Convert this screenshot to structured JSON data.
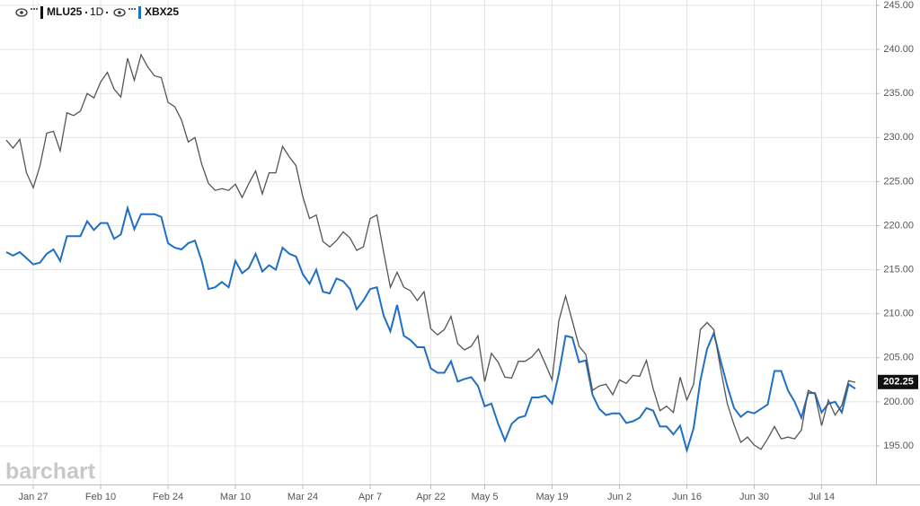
{
  "chart_data": {
    "type": "line",
    "watermark": "barchart",
    "interval": "1D",
    "categories": [
      null,
      null,
      null,
      null,
      "Jan 27",
      null,
      null,
      null,
      null,
      null,
      null,
      null,
      null,
      null,
      "Feb 10",
      null,
      null,
      null,
      null,
      null,
      null,
      null,
      null,
      null,
      "Feb 24",
      null,
      null,
      null,
      null,
      null,
      null,
      null,
      null,
      null,
      "Mar 10",
      null,
      null,
      null,
      null,
      null,
      null,
      null,
      null,
      null,
      "Mar 24",
      null,
      null,
      null,
      null,
      null,
      null,
      null,
      null,
      null,
      "Apr 7",
      null,
      null,
      null,
      null,
      null,
      null,
      null,
      null,
      "Apr 22",
      null,
      null,
      null,
      null,
      null,
      null,
      null,
      "May 5",
      null,
      null,
      null,
      null,
      null,
      null,
      null,
      null,
      null,
      "May 19",
      null,
      null,
      null,
      null,
      null,
      null,
      null,
      null,
      null,
      "Jun 2",
      null,
      null,
      null,
      null,
      null,
      null,
      null,
      null,
      null,
      "Jun 16",
      null,
      null,
      null,
      null,
      null,
      null,
      null,
      null,
      null,
      "Jun 30",
      null,
      null,
      null,
      null,
      null,
      null,
      null,
      null,
      null,
      "Jul 14",
      null,
      null,
      null,
      null,
      null
    ],
    "series": [
      {
        "name": "MLU25",
        "color": "#555555",
        "last_price": 202.25,
        "values": [
          229.7,
          228.8,
          229.8,
          226,
          224.3,
          226.8,
          230.5,
          230.7,
          228.5,
          232.8,
          232.5,
          233,
          235,
          234.5,
          236.3,
          237.4,
          235.5,
          234.6,
          239,
          236.5,
          239.4,
          238,
          237,
          236.8,
          234,
          233.5,
          232,
          229.5,
          230,
          227,
          224.8,
          224,
          224.2,
          224,
          224.7,
          223.2,
          224.8,
          226.2,
          223.6,
          226,
          226,
          229,
          227.8,
          226.8,
          223.3,
          220.8,
          221.2,
          218.2,
          217.6,
          218.3,
          219.3,
          218.6,
          217.2,
          217.6,
          220.8,
          221.2,
          217,
          213,
          214.7,
          213,
          212.6,
          211.5,
          212.5,
          208.3,
          207.6,
          208.2,
          209.7,
          206.6,
          205.9,
          206.3,
          207.5,
          202.3,
          205.5,
          204.5,
          202.8,
          202.7,
          204.6,
          204.6,
          205.1,
          206,
          204.3,
          202.5,
          209.2,
          212,
          209.2,
          206.3,
          205.4,
          201.3,
          201.8,
          202,
          200.8,
          202.5,
          202.1,
          203,
          202.9,
          204.7,
          201.5,
          199,
          199.5,
          198.8,
          202.8,
          200.2,
          202,
          208.2,
          209,
          208.2,
          203.8,
          199.8,
          197.4,
          195.4,
          196,
          195.1,
          194.6,
          195.8,
          197.2,
          195.8,
          196,
          195.8,
          196.8,
          201.3,
          200.9,
          197.3,
          200.2,
          198.5,
          199.6,
          202.4,
          202.2
        ]
      },
      {
        "name": "XBX25",
        "color": "#1f6fc5",
        "values": [
          217,
          216.6,
          217,
          216.3,
          215.6,
          215.8,
          216.8,
          217.3,
          216,
          218.8,
          218.8,
          218.8,
          220.5,
          219.5,
          220.3,
          220.3,
          218.5,
          219,
          222,
          219.6,
          221.3,
          221.3,
          221.3,
          221,
          218,
          217.5,
          217.3,
          218,
          218.3,
          216,
          212.8,
          213,
          213.6,
          213,
          216,
          214.6,
          215.2,
          216.8,
          214.8,
          215.5,
          215,
          217.5,
          216.8,
          216.5,
          214.5,
          213.4,
          215,
          212.5,
          212.3,
          214,
          213.7,
          212.8,
          210.5,
          211.5,
          212.8,
          213,
          209.8,
          208,
          211,
          207.5,
          207,
          206.2,
          206.2,
          203.8,
          203.3,
          203.3,
          204.6,
          202.3,
          202.6,
          202.8,
          201.8,
          199.5,
          199.8,
          197.5,
          195.6,
          197.5,
          198.2,
          198.4,
          200.5,
          200.5,
          200.7,
          199.8,
          203.2,
          207.5,
          207.3,
          204.5,
          204.7,
          200.8,
          199.2,
          198.5,
          198.7,
          198.7,
          197.6,
          197.8,
          198.2,
          199.3,
          199,
          197.2,
          197.2,
          196.3,
          197.3,
          194.5,
          197,
          202.4,
          206,
          207.8,
          204.7,
          201.8,
          199.3,
          198.3,
          198.9,
          198.7,
          199.2,
          199.7,
          203.5,
          203.5,
          201.3,
          200,
          198.2,
          201,
          201,
          198.8,
          199.8,
          200,
          198.8,
          202,
          201.5
        ]
      }
    ],
    "ylim": [
      192.5,
      245
    ],
    "yticks": [
      {
        "value": 195,
        "label": "195.00"
      },
      {
        "value": 200,
        "label": "200.00"
      },
      {
        "value": 205,
        "label": "205.00"
      },
      {
        "value": 210,
        "label": "210.00"
      },
      {
        "value": 215,
        "label": "215.00"
      },
      {
        "value": 220,
        "label": "220.00"
      },
      {
        "value": 225,
        "label": "225.00"
      },
      {
        "value": 230,
        "label": "230.00"
      },
      {
        "value": 235,
        "label": "235.00"
      },
      {
        "value": 240,
        "label": "240.00"
      },
      {
        "value": 245,
        "label": "245.00"
      }
    ],
    "grid": true
  }
}
